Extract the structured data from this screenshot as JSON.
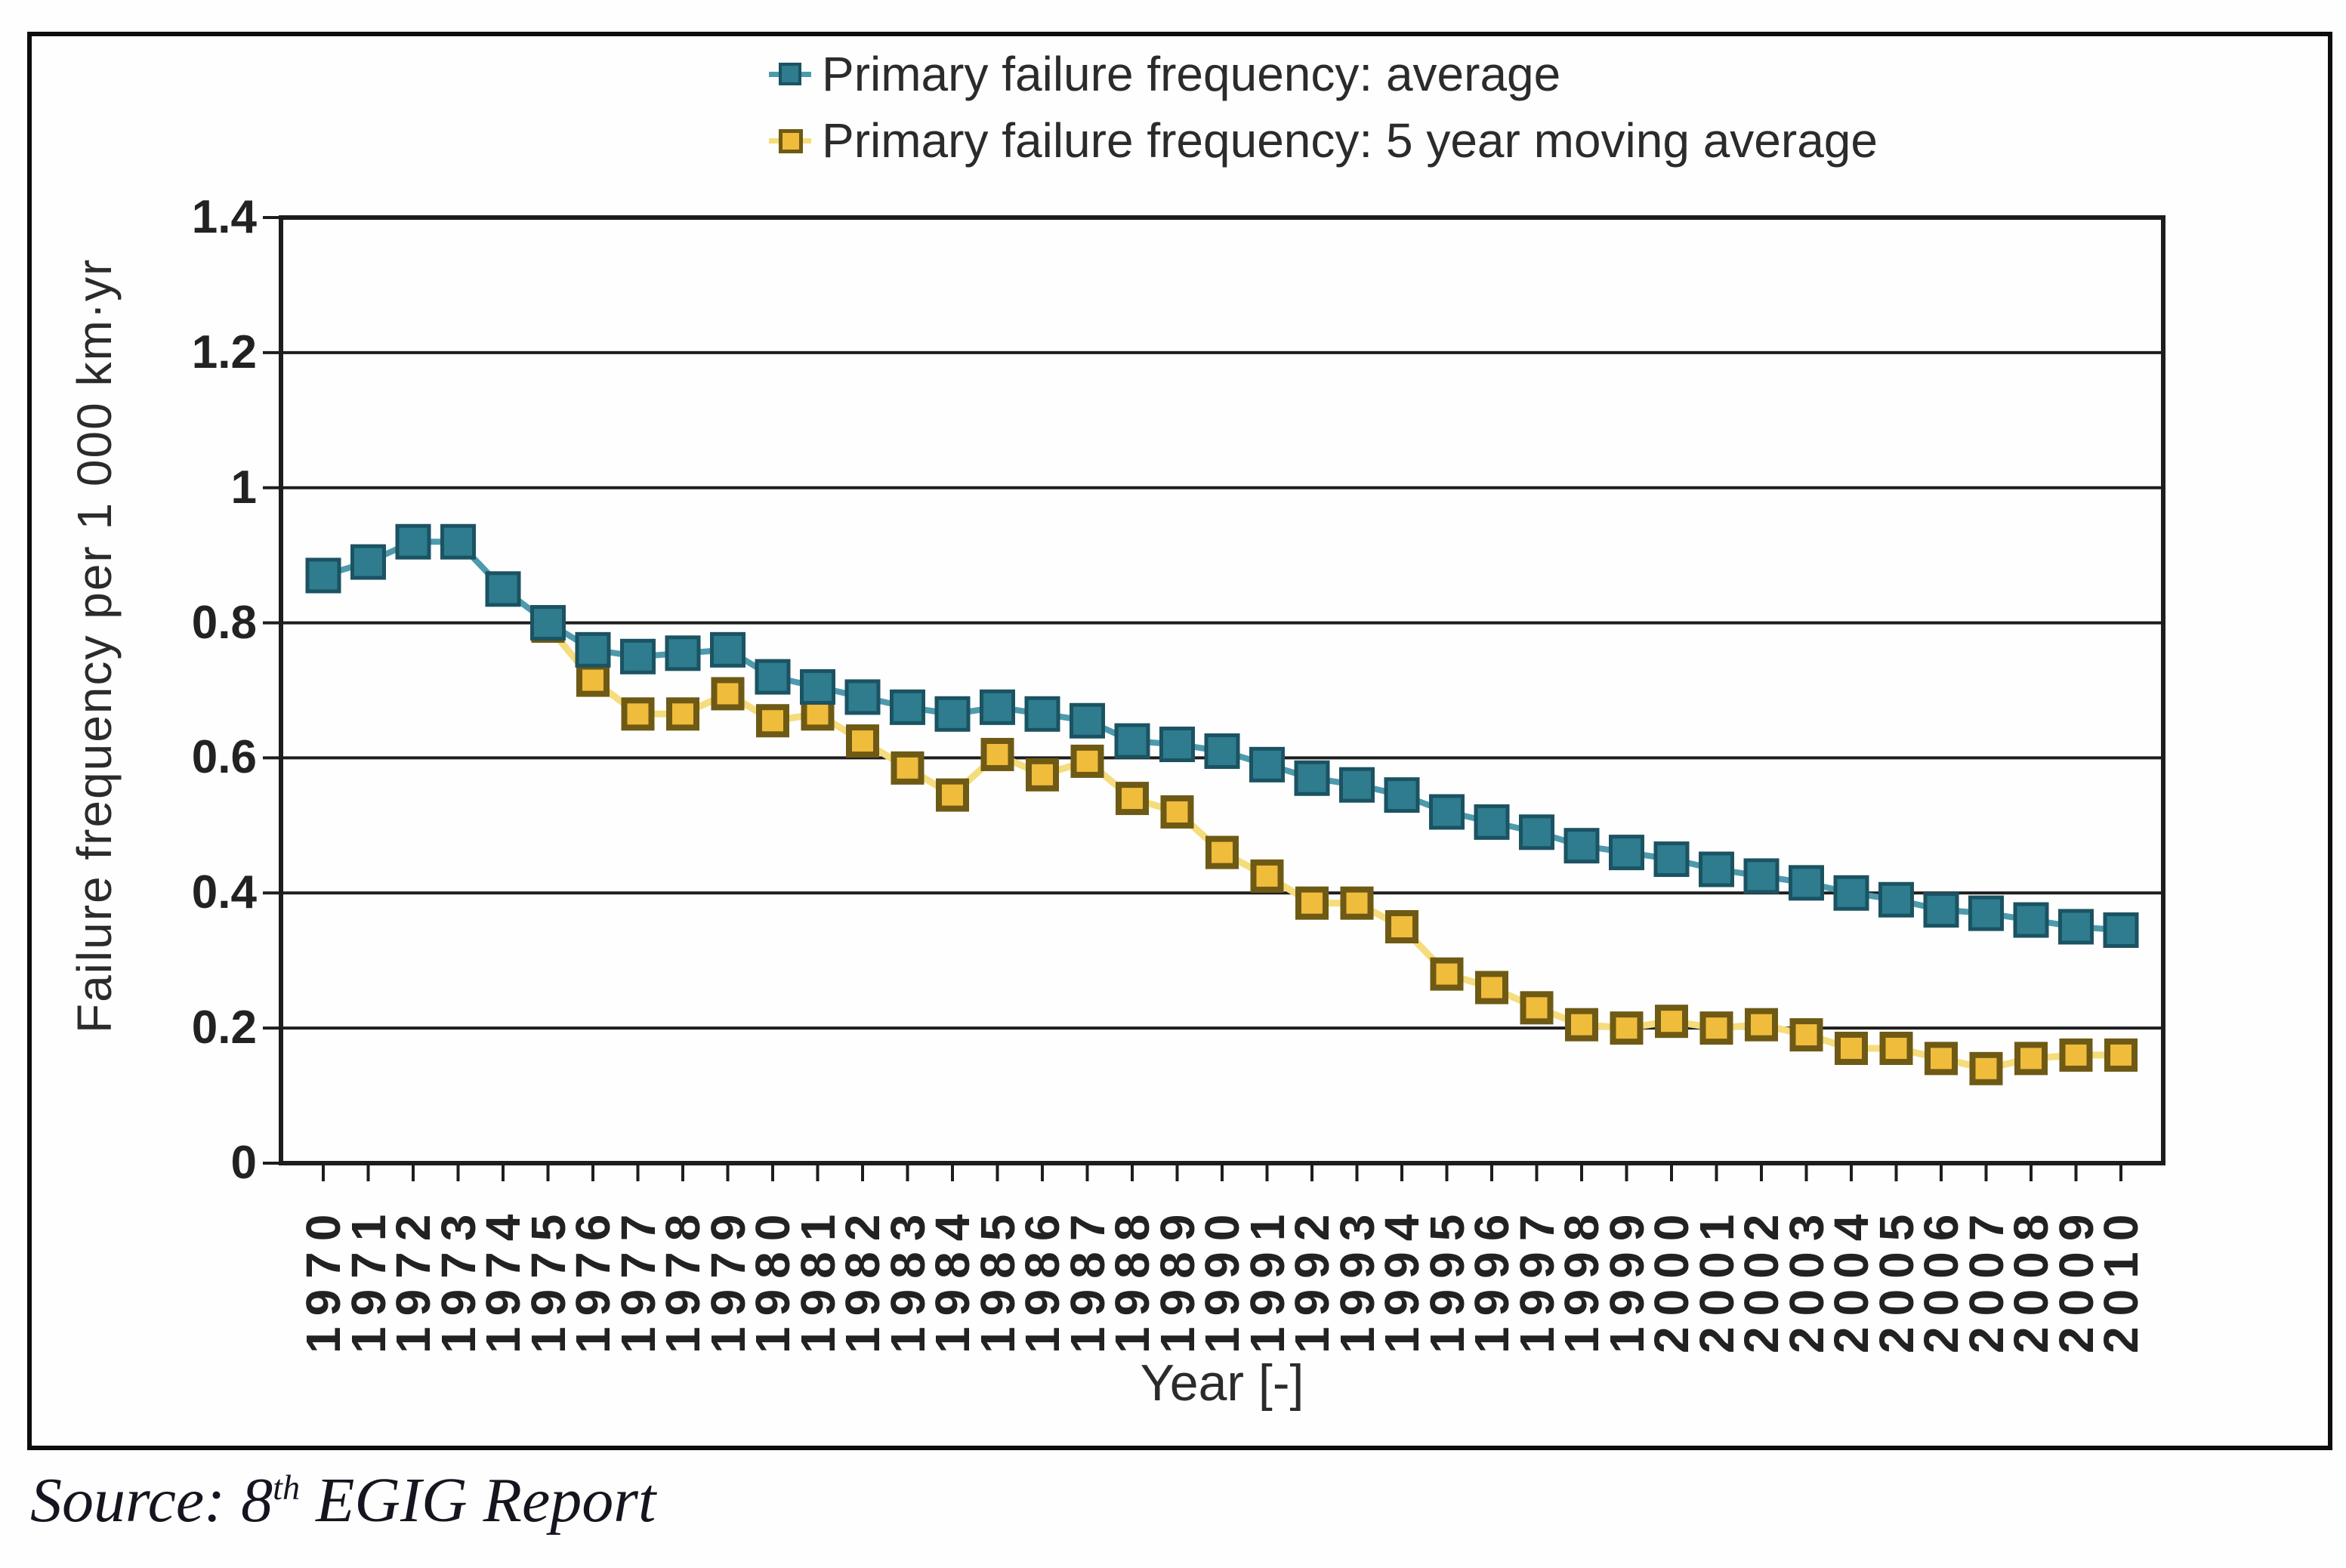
{
  "legend": {
    "items": [
      {
        "label": "Primary failure frequency: average",
        "series": "average"
      },
      {
        "label": "Primary failure frequency: 5 year moving average",
        "series": "moving_average"
      }
    ]
  },
  "axes": {
    "y_label": "Failure frequency per 1 000 km·yr",
    "x_label": "Year [-]",
    "y_ticks": [
      "1.4",
      "1.2",
      "1",
      "0.8",
      "0.6",
      "0.4",
      "0.2",
      "0"
    ]
  },
  "source": {
    "prefix": "Source: 8",
    "superscript": "th",
    "suffix": " EGIG Report"
  },
  "colors": {
    "average_marker": "#2E7C8E",
    "average_marker_border": "#1B5362",
    "average_line": "#4E9AAD",
    "moving_average_marker": "#F0BC3C",
    "moving_average_marker_border": "#6E5A15",
    "moving_average_line": "#F5DC7C",
    "grid": "#1d1d1d",
    "frame": "#1d1d1d",
    "text": "#222222"
  },
  "chart_data": {
    "type": "line",
    "title": "",
    "xlabel": "Year [-]",
    "ylabel": "Failure frequency per 1 000 km·yr",
    "ylim": [
      0,
      1.4
    ],
    "y_tick_step": 0.2,
    "grid": "horizontal",
    "legend_position": "top-center",
    "x": [
      1970,
      1971,
      1972,
      1973,
      1974,
      1975,
      1976,
      1977,
      1978,
      1979,
      1980,
      1981,
      1982,
      1983,
      1984,
      1985,
      1986,
      1987,
      1988,
      1989,
      1990,
      1991,
      1992,
      1993,
      1994,
      1995,
      1996,
      1997,
      1998,
      1999,
      2000,
      2001,
      2002,
      2003,
      2004,
      2005,
      2006,
      2007,
      2008,
      2009,
      2010
    ],
    "series": [
      {
        "name": "Primary failure frequency: average",
        "marker": "square",
        "values": [
          0.87,
          0.89,
          0.92,
          0.92,
          0.85,
          0.8,
          0.76,
          0.75,
          0.755,
          0.76,
          0.72,
          0.705,
          0.69,
          0.675,
          0.665,
          0.675,
          0.665,
          0.655,
          0.625,
          0.62,
          0.61,
          0.59,
          0.57,
          0.56,
          0.545,
          0.52,
          0.505,
          0.49,
          0.47,
          0.46,
          0.45,
          0.435,
          0.425,
          0.415,
          0.4,
          0.39,
          0.375,
          0.37,
          0.36,
          0.35,
          0.345
        ]
      },
      {
        "name": "Primary failure frequency: 5 year moving average",
        "marker": "square",
        "values": [
          null,
          null,
          null,
          null,
          null,
          0.795,
          0.715,
          0.665,
          0.665,
          0.695,
          0.655,
          0.665,
          0.625,
          0.585,
          0.545,
          0.605,
          0.575,
          0.595,
          0.54,
          0.52,
          0.46,
          0.425,
          0.385,
          0.385,
          0.35,
          0.28,
          0.26,
          0.23,
          0.205,
          0.2,
          0.21,
          0.2,
          0.205,
          0.19,
          0.17,
          0.17,
          0.155,
          0.14,
          0.155,
          0.16,
          0.16
        ]
      }
    ]
  }
}
